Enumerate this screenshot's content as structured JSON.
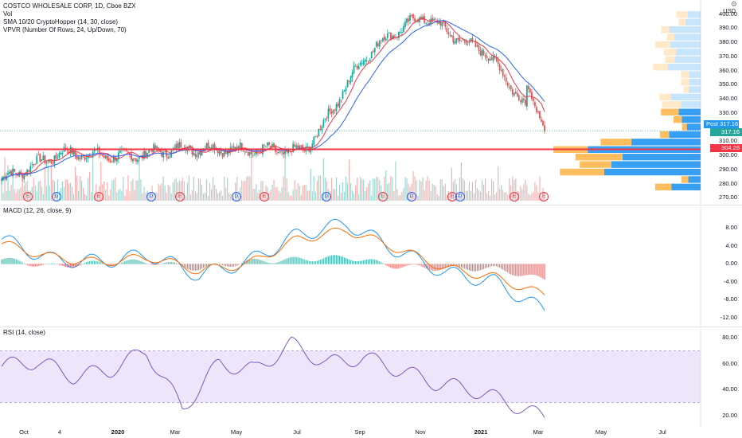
{
  "header": {
    "symbol_line": "COSTCO WHOLESALE CORP, 1D, Cboe BZX",
    "vol_label": "Vol",
    "sma_label": "SMA 10/20 CryptoHopper (14, 30, close)",
    "vpvr_label": "VPVR (Number Of Rows, 24, Up/Down, 70)"
  },
  "price_axis": {
    "currency": "USD",
    "ticks": [
      "400.00",
      "390.00",
      "380.00",
      "370.00",
      "360.00",
      "350.00",
      "340.00",
      "330.00",
      "320.00",
      "310.00",
      "300.00",
      "290.00",
      "280.00",
      "270.00"
    ],
    "post_label": "Post",
    "post_value": "317.16",
    "last_value": "317.16",
    "line_value": "304.28"
  },
  "macd": {
    "label": "MACD (12, 26, close, 9)",
    "ticks": [
      "8.00",
      "4.00",
      "0.00",
      "-4.00",
      "-8.00",
      "-12.00"
    ]
  },
  "rsi": {
    "label": "RSI (14, close)",
    "ticks": [
      "80.00",
      "60.00",
      "40.00",
      "20.00"
    ]
  },
  "time_axis": [
    "Oct",
    "4",
    "2020",
    "Mar",
    "May",
    "Jul",
    "Sep",
    "Nov",
    "2021",
    "Mar",
    "May",
    "Jul"
  ],
  "events": [
    "E",
    "D",
    "E",
    "D",
    "E",
    "D",
    "E",
    "D",
    "E",
    "D",
    "E",
    "D",
    "E",
    "E"
  ],
  "colors": {
    "up": "#26a69a",
    "down": "#ef5350",
    "sma_fast": "#f23645",
    "sma_slow": "#2962ff",
    "macd": "#2196f3",
    "signal": "#ff6d00",
    "rsi": "#7e57c2",
    "hline": "#f23645",
    "vp_up": "#2196f3",
    "vp_down": "#ffb74d"
  },
  "chart_data": [
    {
      "type": "candlestick",
      "title": "COSTCO WHOLESALE CORP, 1D, Cboe BZX",
      "ylabel": "USD",
      "ylim": [
        268,
        402
      ],
      "x": [
        "Oct",
        "4",
        "2020",
        "Mar",
        "May",
        "Jul",
        "Sep",
        "Nov",
        "2021",
        "Mar"
      ],
      "close": [
        283,
        302,
        299,
        305,
        304,
        303,
        358,
        387,
        375,
        317
      ],
      "horizontal_line": 304.28,
      "last_close": 317.16
    },
    {
      "type": "line",
      "title": "MACD (12, 26, close, 9)",
      "ylim": [
        -12,
        10
      ],
      "series": [
        {
          "name": "MACD",
          "values": [
            5.5,
            1.0,
            0.5,
            2.0,
            -2.5,
            0.5,
            6.5,
            9.0,
            3.0,
            -2.0,
            -4.0,
            -10.5
          ]
        },
        {
          "name": "Signal",
          "values": [
            4.5,
            1.5,
            0.3,
            1.5,
            -1.5,
            0.0,
            5.5,
            7.5,
            3.5,
            -1.0,
            -3.0,
            -7.0
          ]
        }
      ]
    },
    {
      "type": "line",
      "title": "RSI (14, close)",
      "ylim": [
        15,
        85
      ],
      "bands": [
        70,
        30
      ],
      "series": [
        {
          "name": "RSI",
          "values": [
            58,
            62,
            50,
            55,
            70,
            25,
            60,
            55,
            75,
            60,
            65,
            55,
            45,
            40,
            30,
            18
          ]
        }
      ]
    }
  ]
}
